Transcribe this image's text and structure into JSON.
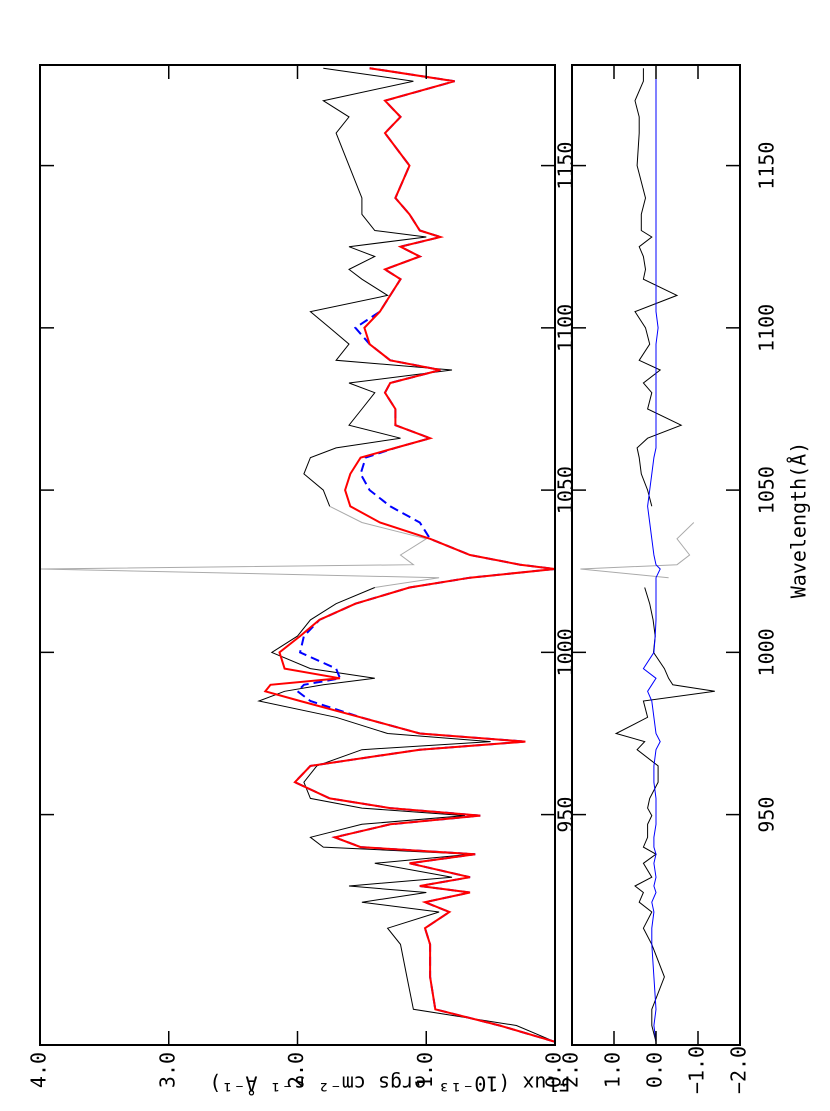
{
  "chart_data": [
    {
      "type": "line",
      "ylabel": "Flux (10⁻¹³ ergs cm⁻² s⁻¹ Å⁻¹)",
      "xlim": [
        879,
        1181
      ],
      "ylim": [
        0,
        4
      ],
      "xticks": [
        950,
        1000,
        1050,
        1100,
        1150
      ],
      "yticks": [
        {
          "value": 0,
          "label": "0.0"
        },
        {
          "value": 1,
          "label": "1.0"
        },
        {
          "value": 2,
          "label": "2.0"
        },
        {
          "value": 3,
          "label": "3.0"
        },
        {
          "value": 4,
          "label": "4.0"
        }
      ],
      "x": [
        880,
        885,
        890,
        900,
        910,
        915,
        920,
        923,
        926,
        928,
        930.7,
        935,
        937.8,
        940,
        943,
        947,
        949.7,
        952,
        955,
        960,
        965,
        970,
        972.5,
        975,
        980,
        985,
        988,
        990,
        992,
        995,
        1000,
        1005,
        1010,
        1015,
        1020,
        1023,
        1025.7,
        1027,
        1030,
        1035,
        1040,
        1045,
        1050,
        1055,
        1060,
        1063,
        1066,
        1070,
        1075,
        1080,
        1083,
        1087,
        1090,
        1095,
        1100,
        1105,
        1110,
        1115,
        1118,
        1122,
        1125,
        1128,
        1130,
        1135,
        1140,
        1150,
        1160,
        1165,
        1170,
        1176,
        1180
      ],
      "series": [
        {
          "color": "#aaaaaa",
          "values": [
            null,
            null,
            null,
            null,
            null,
            null,
            null,
            null,
            null,
            null,
            null,
            null,
            null,
            null,
            null,
            null,
            null,
            null,
            null,
            null,
            null,
            null,
            null,
            null,
            null,
            null,
            null,
            null,
            null,
            null,
            null,
            null,
            null,
            null,
            1.4,
            0.9,
            4.0,
            1.1,
            1.2,
            1.0,
            1.5,
            1.75,
            null,
            null,
            null,
            null,
            null,
            null,
            null,
            null,
            null,
            null,
            null,
            null,
            null,
            null,
            null,
            null,
            null,
            null,
            null,
            null,
            null,
            null,
            null,
            null,
            null,
            null,
            null,
            null,
            null
          ]
        },
        {
          "color": "#000000",
          "values": [
            0,
            0.3,
            1.1,
            1.15,
            1.2,
            1.3,
            0.9,
            1.5,
            1.0,
            1.6,
            0.8,
            1.4,
            0.65,
            1.8,
            1.9,
            1.5,
            0.7,
            1.5,
            1.9,
            1.95,
            1.85,
            1.5,
            0.5,
            1.3,
            1.7,
            2.3,
            2.1,
            1.8,
            1.4,
            1.9,
            2.2,
            2.0,
            1.9,
            1.7,
            1.4,
            null,
            null,
            null,
            null,
            null,
            null,
            1.75,
            1.8,
            1.95,
            1.9,
            1.7,
            1.2,
            1.6,
            1.5,
            1.4,
            1.6,
            0.8,
            1.7,
            1.6,
            1.75,
            1.9,
            1.3,
            1.5,
            1.6,
            1.4,
            1.6,
            1.0,
            1.4,
            1.5,
            1.5,
            1.6,
            1.7,
            1.6,
            1.8,
            1.1,
            1.8
          ]
        },
        {
          "color": "#0000ff",
          "dash": true,
          "values": [
            0,
            0.43,
            0.93,
            0.97,
            0.97,
            1.01,
            0.82,
            1.01,
            0.66,
            1.05,
            0.66,
            1.13,
            0.62,
            1.51,
            1.71,
            1.28,
            0.58,
            1.28,
            1.75,
            2.02,
            1.9,
            1.05,
            0.23,
            1.05,
            1.51,
            1.9,
            2.0,
            1.95,
            1.67,
            1.7,
            1.98,
            1.95,
            1.83,
            1.55,
            1.13,
            0.66,
            0.0,
            0.27,
            0.66,
            0.97,
            1.05,
            1.28,
            1.44,
            1.51,
            1.47,
            1.24,
            0.97,
            1.24,
            1.24,
            1.32,
            1.28,
            0.89,
            1.28,
            1.44,
            1.55,
            1.36,
            1.28,
            1.2,
            1.32,
            1.05,
            1.2,
            0.89,
            1.05,
            1.13,
            1.24,
            1.13,
            1.32,
            1.2,
            1.32,
            0.78,
            1.44
          ]
        },
        {
          "color": "#ff0000",
          "values": [
            0,
            0.43,
            0.93,
            0.97,
            0.97,
            1.01,
            0.82,
            1.01,
            0.66,
            1.05,
            0.66,
            1.13,
            0.62,
            1.51,
            1.71,
            1.28,
            0.58,
            1.28,
            1.75,
            2.02,
            1.9,
            1.05,
            0.23,
            1.05,
            1.51,
            1.98,
            2.25,
            2.21,
            1.67,
            2.1,
            2.14,
            1.98,
            1.83,
            1.55,
            1.13,
            0.66,
            0.0,
            0.27,
            0.66,
            0.97,
            1.36,
            1.59,
            1.63,
            1.59,
            1.51,
            1.24,
            0.97,
            1.24,
            1.24,
            1.32,
            1.28,
            0.89,
            1.28,
            1.44,
            1.48,
            1.36,
            1.28,
            1.2,
            1.32,
            1.05,
            1.2,
            0.89,
            1.05,
            1.13,
            1.24,
            1.13,
            1.32,
            1.2,
            1.32,
            0.78,
            1.44
          ]
        }
      ]
    },
    {
      "type": "line",
      "xlabel": "Wavelength(Å)",
      "xlim": [
        879,
        1181
      ],
      "ylim": [
        -2,
        2
      ],
      "xticks": [
        950,
        1000,
        1050,
        1100,
        1150
      ],
      "yticks": [
        {
          "value": -2,
          "label": "−2.0"
        },
        {
          "value": -1,
          "label": "−1.0"
        },
        {
          "value": 0,
          "label": "0.0"
        },
        {
          "value": 1,
          "label": "1.0"
        },
        {
          "value": 2,
          "label": "2.0"
        }
      ],
      "x": [
        880,
        885,
        890,
        900,
        910,
        915,
        920,
        923,
        926,
        928,
        930.7,
        935,
        937.8,
        940,
        943,
        947,
        949.7,
        952,
        955,
        960,
        965,
        970,
        972.5,
        975,
        980,
        985,
        988,
        990,
        992,
        995,
        1000,
        1005,
        1010,
        1015,
        1020,
        1023,
        1025.7,
        1027,
        1030,
        1035,
        1040,
        1045,
        1050,
        1055,
        1060,
        1063,
        1066,
        1070,
        1075,
        1080,
        1083,
        1087,
        1090,
        1095,
        1100,
        1105,
        1110,
        1115,
        1118,
        1122,
        1125,
        1128,
        1130,
        1135,
        1140,
        1150,
        1160,
        1165,
        1170,
        1176,
        1180
      ],
      "series": [
        {
          "color": "#aaaaaa",
          "values": [
            null,
            null,
            null,
            null,
            null,
            null,
            null,
            null,
            null,
            null,
            null,
            null,
            null,
            null,
            null,
            null,
            null,
            null,
            null,
            null,
            null,
            null,
            null,
            null,
            null,
            null,
            null,
            null,
            null,
            null,
            null,
            null,
            null,
            null,
            null,
            -0.3,
            1.8,
            -0.5,
            -0.8,
            -0.5,
            -0.9,
            null,
            null,
            null,
            null,
            null,
            null,
            null,
            null,
            null,
            null,
            null,
            null,
            null,
            null,
            null,
            null,
            null,
            null,
            null,
            null,
            null,
            null,
            null,
            null,
            null,
            null,
            null,
            null,
            null,
            null
          ]
        },
        {
          "color": "#000000",
          "values": [
            0,
            0.1,
            0.1,
            -0.2,
            0.1,
            0.3,
            0.1,
            0.4,
            0.3,
            0.5,
            0.1,
            0.3,
            0.0,
            0.3,
            0.2,
            0.2,
            0.1,
            0.2,
            0.15,
            -0.05,
            -0.05,
            0.45,
            0.27,
            0.95,
            0.2,
            0.3,
            -1.4,
            -0.4,
            -0.3,
            -0.2,
            0.06,
            0.02,
            0.07,
            0.15,
            0.27,
            null,
            null,
            null,
            null,
            null,
            null,
            0.1,
            0.2,
            0.35,
            0.4,
            0.45,
            0.2,
            -0.6,
            0.2,
            0.1,
            0.3,
            -0.1,
            0.4,
            0.15,
            0.25,
            0.5,
            -0.5,
            0.3,
            0.25,
            0.3,
            0.4,
            0.1,
            0.35,
            0.35,
            0.25,
            0.45,
            0.4,
            0.4,
            0.5,
            0.3,
            0.3
          ]
        },
        {
          "color": "#0000ff",
          "values": [
            0,
            0.05,
            0,
            0.05,
            0.1,
            0.1,
            0.05,
            0.1,
            0,
            0.05,
            0,
            0.05,
            0,
            0.05,
            0.05,
            0,
            0,
            0,
            0,
            0.05,
            0.05,
            0,
            -0.1,
            0,
            0.05,
            0.1,
            0.2,
            0.1,
            0,
            0.3,
            0.05,
            0.02,
            0,
            0,
            0,
            0,
            -0.1,
            0,
            0.05,
            0.1,
            0.15,
            0.2,
            0.15,
            0.1,
            0.05,
            0,
            0,
            0,
            0,
            0,
            0,
            0,
            0,
            0,
            -0.05,
            0,
            0,
            0,
            0,
            0,
            0,
            0,
            0,
            0,
            0,
            0,
            0,
            0,
            0,
            0,
            0
          ]
        }
      ]
    }
  ]
}
